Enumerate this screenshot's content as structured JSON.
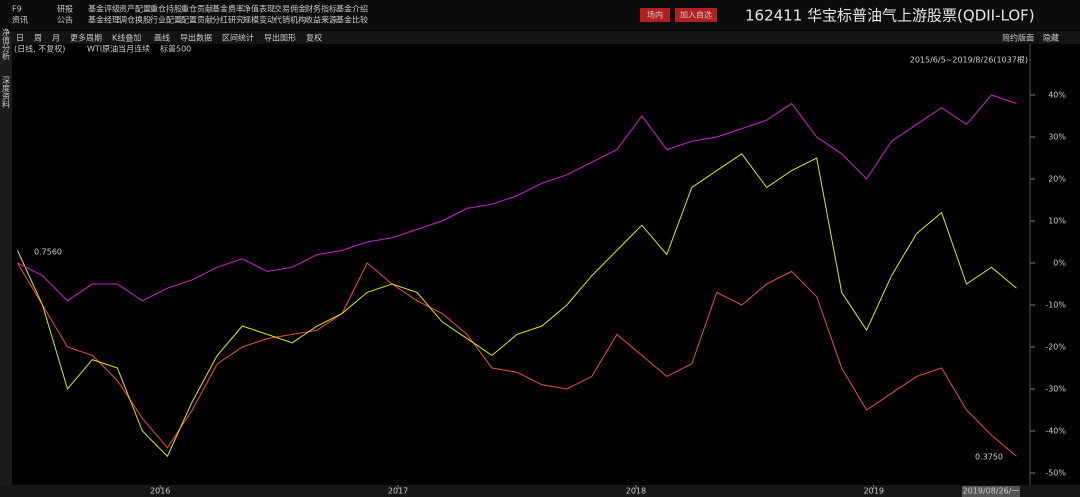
{
  "menu": {
    "rows": [
      [
        "F9",
        "研报",
        "基金评级",
        "资产配置",
        "重仓持股",
        "重仓贡献",
        "基金费率",
        "净值表现",
        "交易佣金",
        "财务指标",
        "基金介绍"
      ],
      [
        "资讯",
        "公告",
        "基金经理",
        "调仓换股",
        "行业配置",
        "配置贡献",
        "分红研究",
        "规模变动",
        "代销机构",
        "收益来源",
        "基金比较"
      ]
    ]
  },
  "buttons": [
    "场内",
    "加入自选"
  ],
  "title": "162411 华宝标普油气上游股票(QDII-LOF)",
  "toolbar": [
    "日",
    "周",
    "月",
    "更多周期",
    "K线叠加",
    "画线",
    "导出数据",
    "区间统计",
    "导出图形",
    "复权"
  ],
  "toolbar_right": [
    "简约版面",
    "隐藏"
  ],
  "side_tabs": [
    "净值分析",
    "深度资料"
  ],
  "chart_data": {
    "type": "line",
    "range_label": "2015/6/5~2019/8/26(1037根)",
    "start_label": "0.7560",
    "end_label": "0.3750",
    "cursor_date": "2019/08/26/一",
    "x": [
      2015.4,
      2015.505,
      2015.61,
      2015.715,
      2015.82,
      2015.925,
      2016.03,
      2016.135,
      2016.24,
      2016.345,
      2016.45,
      2016.555,
      2016.66,
      2016.765,
      2016.87,
      2016.975,
      2017.08,
      2017.185,
      2017.29,
      2017.395,
      2017.5,
      2017.605,
      2017.71,
      2017.815,
      2017.92,
      2018.025,
      2018.13,
      2018.235,
      2018.34,
      2018.445,
      2018.55,
      2018.655,
      2018.76,
      2018.865,
      2018.97,
      2019.075,
      2019.18,
      2019.285,
      2019.39,
      2019.495,
      2019.6
    ],
    "xlim": [
      2015.36,
      2019.64
    ],
    "xticks": [
      2016,
      2017,
      2018,
      2019
    ],
    "ylim": [
      -52,
      50
    ],
    "yticks": [
      {
        "value": 40,
        "label": "40%"
      },
      {
        "value": 30,
        "label": "30%"
      },
      {
        "value": 20,
        "label": "20%"
      },
      {
        "value": 10,
        "label": "10%"
      },
      {
        "value": 0,
        "label": "0%"
      },
      {
        "value": -10,
        "label": "-10%"
      },
      {
        "value": -20,
        "label": "-20%"
      },
      {
        "value": -30,
        "label": "-30%"
      },
      {
        "value": -40,
        "label": "-40%"
      },
      {
        "value": -50,
        "label": "-50%"
      }
    ],
    "series": [
      {
        "name": "(日线, 不复权)",
        "color": "#e8503a",
        "values": [
          0,
          -10,
          -20,
          -22,
          -28,
          -37,
          -44,
          -35,
          -24,
          -20,
          -18,
          -17,
          -16,
          -12,
          0,
          -5,
          -9,
          -12,
          -17,
          -25,
          -26,
          -29,
          -30,
          -27,
          -17,
          -22,
          -27,
          -24,
          -7,
          -10,
          -5,
          -2,
          -8,
          -25,
          -35,
          -31,
          -27,
          -25,
          -35,
          -41,
          -46
        ]
      },
      {
        "name": "WTI原油当月连续",
        "color": "#e6e600",
        "values": [
          3,
          -10,
          -30,
          -23,
          -25,
          -40,
          -46,
          -33,
          -22,
          -15,
          -17,
          -19,
          -15,
          -12,
          -7,
          -5,
          -7,
          -14,
          -18,
          -22,
          -17,
          -15,
          -10,
          -3,
          3,
          9,
          2,
          18,
          22,
          26,
          18,
          22,
          25,
          -7,
          -16,
          -3,
          7,
          12,
          -5,
          -1,
          -6
        ]
      },
      {
        "name": "标普500",
        "color": "#d020d0",
        "values": [
          0,
          -3,
          -9,
          -5,
          -5,
          -9,
          -6,
          -4,
          -1,
          1,
          -2,
          -1,
          2,
          3,
          5,
          6,
          8,
          10,
          13,
          14,
          16,
          19,
          21,
          24,
          27,
          35,
          27,
          29,
          30,
          32,
          34,
          38,
          30,
          26,
          20,
          29,
          33,
          37,
          33,
          40,
          38
        ]
      }
    ]
  }
}
